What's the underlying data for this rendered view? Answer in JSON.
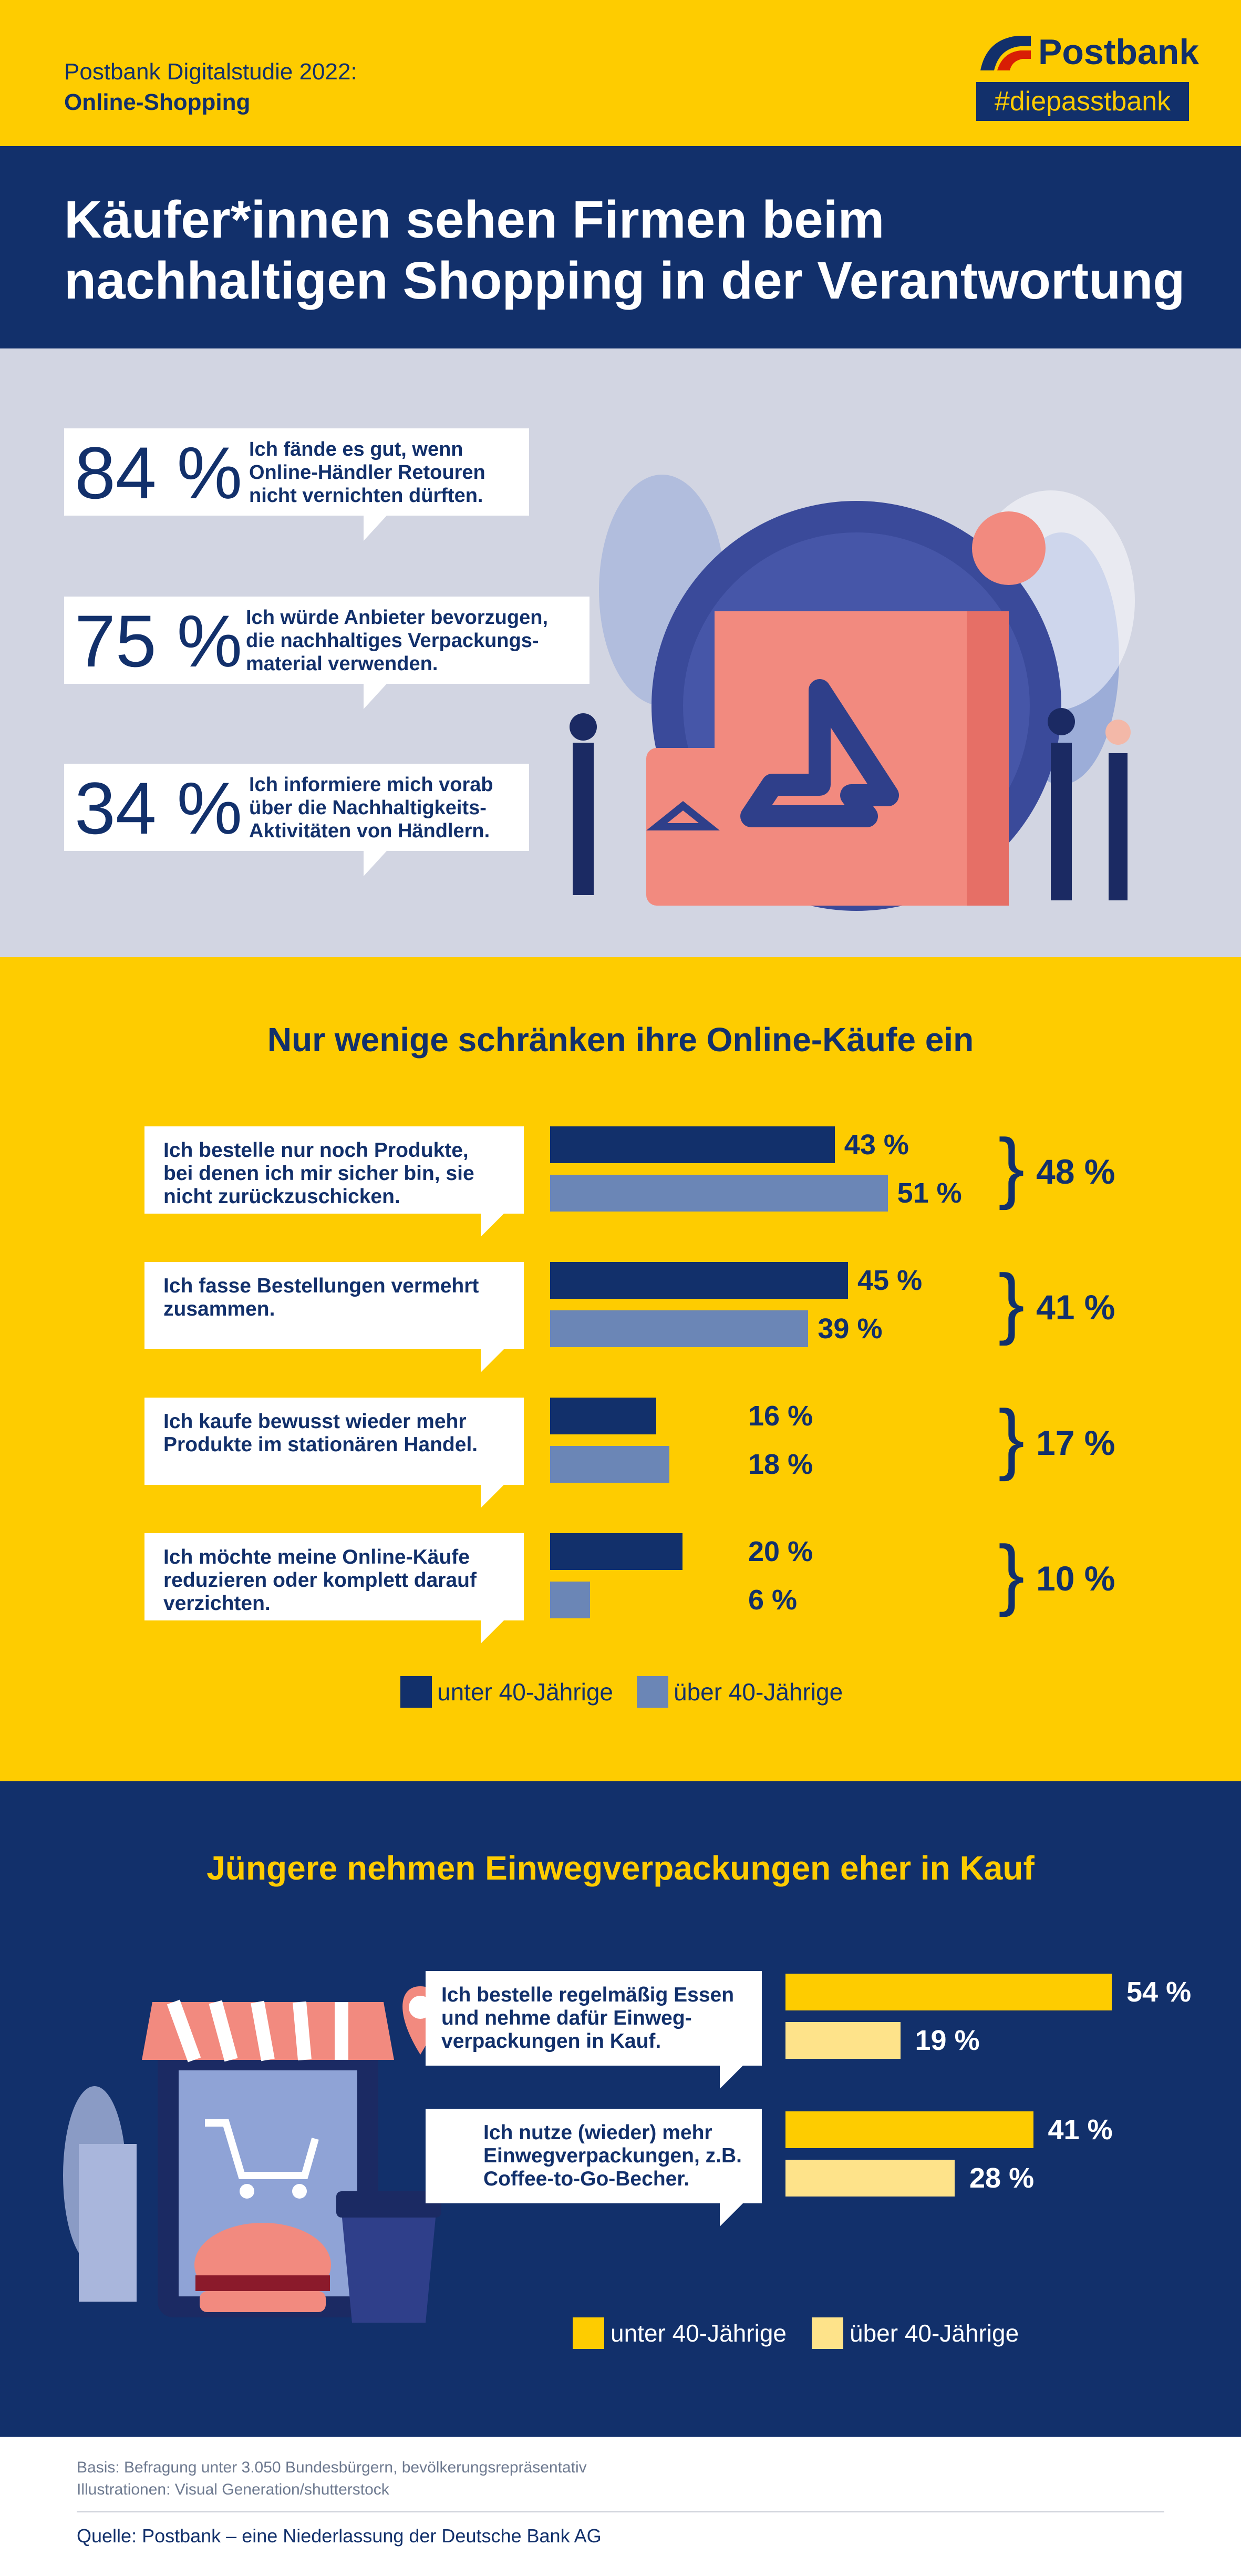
{
  "header": {
    "study_line1": "Postbank Digitalstudie 2022:",
    "study_line2": "Online-Shopping",
    "brand": "Postbank",
    "hashtag": "#diepasstbank"
  },
  "title": "Käufer*innen sehen Firmen beim nachhaltigen Shopping in der Verantwortung",
  "statements": [
    {
      "pct": "84 %",
      "text": "Ich fände es gut, wenn Online-Händler Retouren nicht vernichten dürften."
    },
    {
      "pct": "75 %",
      "text": "Ich würde Anbieter bevorzugen, die nachhaltiges Verpackungs-material verwenden."
    },
    {
      "pct": "34 %",
      "text": "Ich informiere mich vorab über die Nachhaltigkeits-Aktivitäten von Händlern."
    }
  ],
  "colors": {
    "yellow": "#fecc00",
    "navy": "#12306b",
    "steel_blue": "#6b86b6",
    "light_yellow": "#fee38a",
    "grey_bg": "#d2d5e2"
  },
  "chart_data": [
    {
      "type": "bar",
      "title": "Nur wenige schränken ihre Online-Käufe ein",
      "categories": [
        "Ich bestelle nur noch Produkte, bei denen ich mir sicher bin, sie nicht zurückzuschicken.",
        "Ich fasse Bestellungen vermehrt zusammen.",
        "Ich kaufe bewusst wieder mehr Produkte im stationären Handel.",
        "Ich möchte meine Online-Käufe reduzieren oder komplett darauf verzichten."
      ],
      "series": [
        {
          "name": "unter 40-Jährige",
          "values": [
            43,
            45,
            16,
            20
          ],
          "color": "#12306b"
        },
        {
          "name": "über 40-Jährige",
          "values": [
            51,
            39,
            18,
            6
          ],
          "color": "#6b86b6"
        }
      ],
      "value_labels": [
        [
          "43 %",
          "51 %"
        ],
        [
          "45 %",
          "39 %"
        ],
        [
          "16 %",
          "18 %"
        ],
        [
          "20 %",
          "6 %"
        ]
      ],
      "totals": [
        "48 %",
        "41 %",
        "17 %",
        "10 %"
      ],
      "xlim": [
        0,
        100
      ],
      "legend": "bottom"
    },
    {
      "type": "bar",
      "title": "Jüngere nehmen Einwegverpackungen eher in Kauf",
      "categories": [
        "Ich bestelle regelmäßig Essen und nehme dafür Einweg-verpackungen in Kauf.",
        "Ich nutze (wieder) mehr Einwegverpackungen, z.B. Coffee-to-Go-Becher."
      ],
      "series": [
        {
          "name": "unter 40-Jährige",
          "values": [
            54,
            41
          ],
          "color": "#fecc00"
        },
        {
          "name": "über 40-Jährige",
          "values": [
            19,
            28
          ],
          "color": "#fee38a"
        }
      ],
      "value_labels": [
        [
          "54 %",
          "19 %"
        ],
        [
          "41 %",
          "28 %"
        ]
      ],
      "xlim": [
        0,
        100
      ],
      "legend": "bottom"
    }
  ],
  "footer": {
    "basis": "Basis: Befragung unter 3.050 Bundesbürgern, bevölkerungsrepräsentativ",
    "illustrations": "Illustrationen: Visual Generation/shutterstock",
    "source": "Quelle: Postbank – eine Niederlassung der Deutsche Bank AG"
  }
}
